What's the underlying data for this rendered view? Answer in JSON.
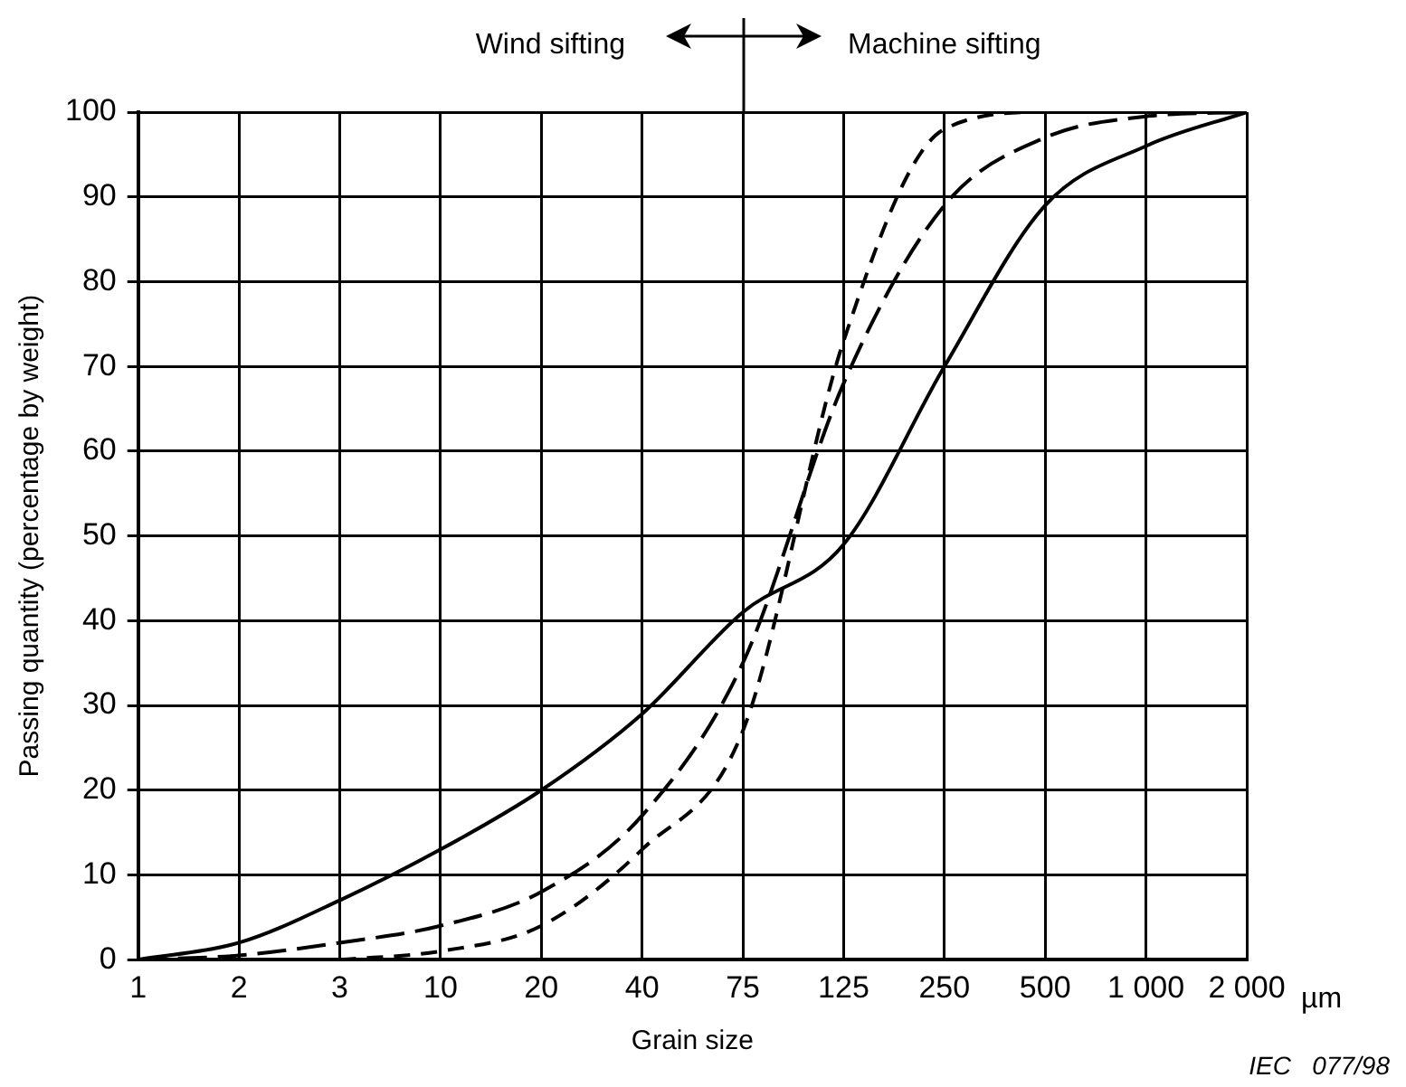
{
  "chart_data": {
    "type": "line",
    "xlabel": "Grain size",
    "ylabel": "Passing quantity (percentage by weight)",
    "categories": [
      "1",
      "2",
      "3",
      "10",
      "20",
      "40",
      "75",
      "125",
      "250",
      "500",
      "1 000",
      "2 000"
    ],
    "series": [
      {
        "color": "#000000",
        "line_style": "solid",
        "values": [
          0,
          2,
          7,
          13,
          20,
          29,
          41,
          49,
          70,
          89,
          96,
          100
        ]
      },
      {
        "color": "#000000",
        "line_style": "dashed",
        "values": [
          0,
          0.5,
          2,
          4,
          8,
          17,
          35,
          68,
          89,
          97,
          99.5,
          100
        ]
      },
      {
        "color": "#000000",
        "line_style": "dashed",
        "values": [
          null,
          null,
          0,
          1,
          4,
          13,
          27,
          73,
          98,
          100,
          100,
          100
        ]
      }
    ],
    "ylim": [
      0,
      100
    ],
    "yticks": [
      0,
      10,
      20,
      30,
      40,
      50,
      60,
      70,
      80,
      90,
      100
    ],
    "grid": true,
    "marker": "none",
    "legend": false,
    "annotations": [
      "Wind sifting",
      "Machine sifting",
      "µm",
      "IEC   077/98"
    ]
  }
}
